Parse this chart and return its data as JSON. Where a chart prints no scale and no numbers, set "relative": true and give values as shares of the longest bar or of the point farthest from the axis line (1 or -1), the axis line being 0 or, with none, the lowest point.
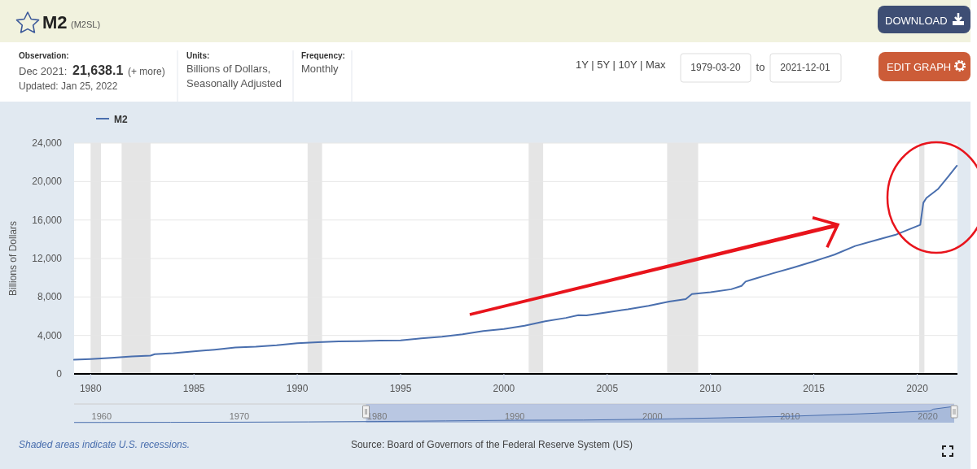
{
  "chart_data": [
    {
      "type": "line",
      "title": "M2",
      "subtitle": "(M2SL)",
      "ylabel": "Billions of Dollars",
      "x": [
        1979.2,
        1980,
        1981,
        1982,
        1982.9,
        1983.1,
        1984,
        1985,
        1986,
        1987,
        1988,
        1989,
        1990,
        1991,
        1992,
        1993,
        1994,
        1995,
        1996,
        1997,
        1998,
        1999,
        2000,
        2001,
        2002,
        2003,
        2003.6,
        2004,
        2005,
        2006,
        2007,
        2008,
        2008.8,
        2009.1,
        2010,
        2011,
        2011.5,
        2011.7,
        2012,
        2013,
        2014,
        2015,
        2016,
        2017,
        2018,
        2019,
        2020.15,
        2020.3,
        2020.45,
        2021,
        2021.5,
        2021.92
      ],
      "series": [
        {
          "name": "M2",
          "color": "#4a6fae",
          "values": [
            1470,
            1540,
            1660,
            1810,
            1900,
            2050,
            2150,
            2340,
            2520,
            2740,
            2830,
            2980,
            3190,
            3290,
            3390,
            3410,
            3470,
            3480,
            3690,
            3870,
            4120,
            4460,
            4660,
            5000,
            5480,
            5820,
            6100,
            6080,
            6410,
            6720,
            7080,
            7520,
            7780,
            8300,
            8500,
            8800,
            9150,
            9600,
            9800,
            10450,
            11050,
            11700,
            12400,
            13300,
            13900,
            14500,
            15500,
            17800,
            18300,
            19200,
            20500,
            21638
          ]
        }
      ],
      "xlim": [
        1979.2,
        2021.95
      ],
      "xticks": [
        1980,
        1985,
        1990,
        1995,
        2000,
        2005,
        2010,
        2015,
        2020
      ],
      "ylim": [
        0,
        24000
      ],
      "yticks": [
        0,
        {
          "value": 4000,
          "label": "4,000"
        },
        {
          "value": 8000,
          "label": "8,000"
        },
        {
          "value": 12000,
          "label": "12,000"
        },
        {
          "value": 16000,
          "label": "16,000"
        },
        {
          "value": 20000,
          "label": "20,000"
        },
        {
          "value": 24000,
          "label": "24,000"
        }
      ],
      "grid": "y",
      "legend": "top left",
      "bands": [
        {
          "axis": "x",
          "from": 1980.0,
          "to": 1980.5,
          "color": "#e5e5e5"
        },
        {
          "axis": "x",
          "from": 1981.5,
          "to": 1982.9,
          "color": "#e5e5e5"
        },
        {
          "axis": "x",
          "from": 1990.5,
          "to": 1991.2,
          "color": "#e5e5e5"
        },
        {
          "axis": "x",
          "from": 2001.2,
          "to": 2001.9,
          "color": "#e5e5e5"
        },
        {
          "axis": "x",
          "from": 2007.9,
          "to": 2009.4,
          "color": "#e5e5e5"
        },
        {
          "axis": "x",
          "from": 2020.1,
          "to": 2020.35,
          "color": "#e5e5e5"
        }
      ],
      "annotations": [
        "Observation:",
        "Dec 2021:",
        "21,638.1",
        "(+ more)",
        "Updated: Jan 25, 2022",
        "Units:",
        "Billions of Dollars,",
        "Seasonally Adjusted",
        "Frequency:",
        "Monthly",
        "1Y | 5Y | 10Y | Max",
        "1979-03-20",
        "to",
        "2021-12-01",
        "DOWNLOAD",
        "EDIT GRAPH",
        "Shaded areas indicate U.S. recessions.",
        "Source: Board of Governors of the Federal Reserve System (US)"
      ]
    },
    {
      "type": "area",
      "relative": true,
      "tick_labels": "x",
      "x": [
        1958,
        1960,
        1965,
        1970,
        1975,
        1980,
        1985,
        1990,
        1995,
        2000,
        2005,
        2010,
        2015,
        2020.15,
        2020.4,
        2021.92
      ],
      "series": [
        {
          "color": "#4a6fae",
          "values": [
            0.013,
            0.014,
            0.021,
            0.029,
            0.047,
            0.071,
            0.108,
            0.147,
            0.161,
            0.215,
            0.296,
            0.393,
            0.541,
            0.716,
            0.83,
            1
          ]
        }
      ],
      "xlim": [
        1958,
        2021.92
      ],
      "xticks": [
        1960,
        1970,
        1980,
        1990,
        2000,
        2010,
        2020
      ],
      "bands": [
        {
          "axis": "x",
          "from": 1979.2,
          "to": 2021.92,
          "color": "#9eb0d8"
        }
      ]
    }
  ]
}
